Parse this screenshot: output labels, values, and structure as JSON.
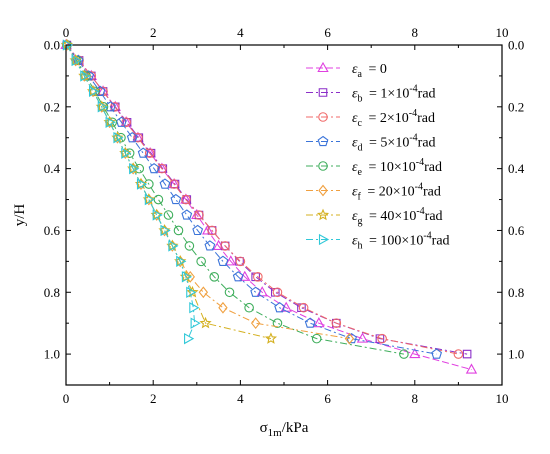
{
  "chart_data": {
    "type": "line",
    "xlabel": "σ1m/kPa",
    "xlabel_main": "σ",
    "xlabel_sub": "1m",
    "xlabel_unit": "/kPa",
    "ylabel": "y/H",
    "xlim": [
      0,
      10
    ],
    "ylim": [
      0,
      1.1
    ],
    "y_inverted": true,
    "x_axis_position": "top and bottom",
    "y_axis_position": "left and right",
    "x_ticks": [
      0,
      2,
      4,
      6,
      8,
      10
    ],
    "y_ticks": [
      0.0,
      0.2,
      0.4,
      0.6,
      0.8,
      1.0
    ],
    "x_tick_labels": [
      "0",
      "2",
      "4",
      "6",
      "8",
      "10"
    ],
    "y_tick_labels": [
      "0.0",
      "0.2",
      "0.4",
      "0.6",
      "0.8",
      "1.0"
    ],
    "grid": false,
    "legend_position": "top-right",
    "series": [
      {
        "symbol": "ε",
        "sub": "a",
        "value_text": "= 0",
        "sup": "",
        "suffix": "",
        "color": "#e040e0",
        "marker": "triangle-up",
        "dash": "7,3",
        "x": [
          0,
          0.28,
          0.58,
          0.85,
          1.13,
          1.38,
          1.65,
          1.93,
          2.2,
          2.48,
          2.75,
          3.0,
          3.25,
          3.5,
          3.78,
          4.1,
          4.5,
          5.05,
          5.8,
          6.8,
          8.0,
          9.3
        ],
        "y": [
          0,
          0.05,
          0.1,
          0.15,
          0.2,
          0.25,
          0.3,
          0.35,
          0.4,
          0.45,
          0.5,
          0.55,
          0.6,
          0.65,
          0.7,
          0.75,
          0.8,
          0.85,
          0.9,
          0.95,
          1.0,
          1.05
        ]
      },
      {
        "symbol": "ε",
        "sub": "b",
        "value_text": "= 1×10",
        "sup": "-4",
        "suffix": "rad",
        "color": "#8c2fc8",
        "marker": "square",
        "dash": "7,3,2,3",
        "x": [
          0.02,
          0.3,
          0.58,
          0.85,
          1.13,
          1.4,
          1.67,
          1.95,
          2.22,
          2.5,
          2.77,
          3.05,
          3.35,
          3.65,
          3.98,
          4.35,
          4.8,
          5.4,
          6.2,
          7.2,
          9.2
        ],
        "y": [
          0,
          0.05,
          0.1,
          0.15,
          0.2,
          0.25,
          0.3,
          0.35,
          0.4,
          0.45,
          0.5,
          0.55,
          0.6,
          0.65,
          0.7,
          0.75,
          0.8,
          0.85,
          0.9,
          0.95,
          1.0
        ]
      },
      {
        "symbol": "ε",
        "sub": "c",
        "value_text": "= 2×10",
        "sup": "-4",
        "suffix": "rad",
        "color": "#f06a6a",
        "marker": "circle",
        "dash": "7,3,2,3",
        "x": [
          0.02,
          0.3,
          0.58,
          0.85,
          1.12,
          1.38,
          1.65,
          1.92,
          2.2,
          2.48,
          2.75,
          3.05,
          3.35,
          3.65,
          4.0,
          4.4,
          4.85,
          5.45,
          6.2,
          7.25,
          9.0
        ],
        "y": [
          0,
          0.05,
          0.1,
          0.15,
          0.2,
          0.25,
          0.3,
          0.35,
          0.4,
          0.45,
          0.5,
          0.55,
          0.6,
          0.65,
          0.7,
          0.75,
          0.8,
          0.85,
          0.9,
          0.95,
          1.0
        ]
      },
      {
        "symbol": "ε",
        "sub": "d",
        "value_text": "= 5×10",
        "sup": "-4",
        "suffix": "rad",
        "color": "#3b74d9",
        "marker": "pentagon",
        "dash": "7,3,2,3",
        "x": [
          0.02,
          0.28,
          0.52,
          0.78,
          1.02,
          1.27,
          1.52,
          1.77,
          2.02,
          2.27,
          2.52,
          2.77,
          3.02,
          3.3,
          3.6,
          3.95,
          4.35,
          4.9,
          5.6,
          6.55,
          8.5
        ],
        "y": [
          0,
          0.05,
          0.1,
          0.15,
          0.2,
          0.25,
          0.3,
          0.35,
          0.4,
          0.45,
          0.5,
          0.55,
          0.6,
          0.65,
          0.7,
          0.75,
          0.8,
          0.85,
          0.9,
          0.95,
          1.0
        ]
      },
      {
        "symbol": "ε",
        "sub": "e",
        "value_text": "= 10×10",
        "sup": "-4",
        "suffix": "rad",
        "color": "#3fae5c",
        "marker": "circle",
        "dash": "7,3,2,3",
        "x": [
          0.02,
          0.24,
          0.46,
          0.66,
          0.86,
          1.06,
          1.26,
          1.46,
          1.68,
          1.9,
          2.12,
          2.35,
          2.58,
          2.83,
          3.1,
          3.4,
          3.75,
          4.2,
          4.85,
          5.75,
          7.75
        ],
        "y": [
          0,
          0.05,
          0.1,
          0.15,
          0.2,
          0.25,
          0.3,
          0.35,
          0.4,
          0.45,
          0.5,
          0.55,
          0.6,
          0.65,
          0.7,
          0.75,
          0.8,
          0.85,
          0.9,
          0.95,
          1.0
        ]
      },
      {
        "symbol": "ε",
        "sub": "f",
        "value_text": "= 20×10",
        "sup": "-4",
        "suffix": "rad",
        "color": "#f0a040",
        "marker": "diamond",
        "dash": "7,3,2,3",
        "x": [
          0.02,
          0.22,
          0.42,
          0.62,
          0.82,
          1.0,
          1.18,
          1.36,
          1.54,
          1.72,
          1.9,
          2.08,
          2.26,
          2.44,
          2.62,
          2.85,
          3.15,
          3.6,
          4.35,
          6.5
        ],
        "y": [
          0,
          0.05,
          0.1,
          0.15,
          0.2,
          0.25,
          0.3,
          0.35,
          0.4,
          0.45,
          0.5,
          0.55,
          0.6,
          0.65,
          0.7,
          0.75,
          0.8,
          0.85,
          0.9,
          0.95
        ]
      },
      {
        "symbol": "ε",
        "sub": "g",
        "value_text": "= 40×10",
        "sup": "-4",
        "suffix": "rad",
        "color": "#d4b020",
        "marker": "star",
        "dash": "7,3,2,3",
        "x": [
          0.02,
          0.22,
          0.42,
          0.62,
          0.82,
          1.0,
          1.18,
          1.36,
          1.54,
          1.72,
          1.9,
          2.08,
          2.26,
          2.44,
          2.62,
          2.75,
          2.9,
          3.2,
          4.7
        ],
        "y": [
          0,
          0.05,
          0.1,
          0.15,
          0.2,
          0.25,
          0.3,
          0.35,
          0.4,
          0.45,
          0.5,
          0.55,
          0.6,
          0.65,
          0.7,
          0.75,
          0.8,
          0.9,
          0.95
        ]
      },
      {
        "symbol": "ε",
        "sub": "h",
        "value_text": "= 100×10",
        "sup": "-4",
        "suffix": "rad",
        "color": "#30c8d8",
        "marker": "triangle-right",
        "dash": "7,3,2,3",
        "x": [
          0.02,
          0.22,
          0.42,
          0.62,
          0.82,
          1.0,
          1.18,
          1.36,
          1.54,
          1.72,
          1.9,
          2.08,
          2.26,
          2.44,
          2.62,
          2.75,
          2.85,
          2.92,
          2.95,
          2.8
        ],
        "y": [
          0,
          0.05,
          0.1,
          0.15,
          0.2,
          0.25,
          0.3,
          0.35,
          0.4,
          0.45,
          0.5,
          0.55,
          0.6,
          0.65,
          0.7,
          0.75,
          0.8,
          0.85,
          0.9,
          0.95
        ]
      }
    ]
  }
}
